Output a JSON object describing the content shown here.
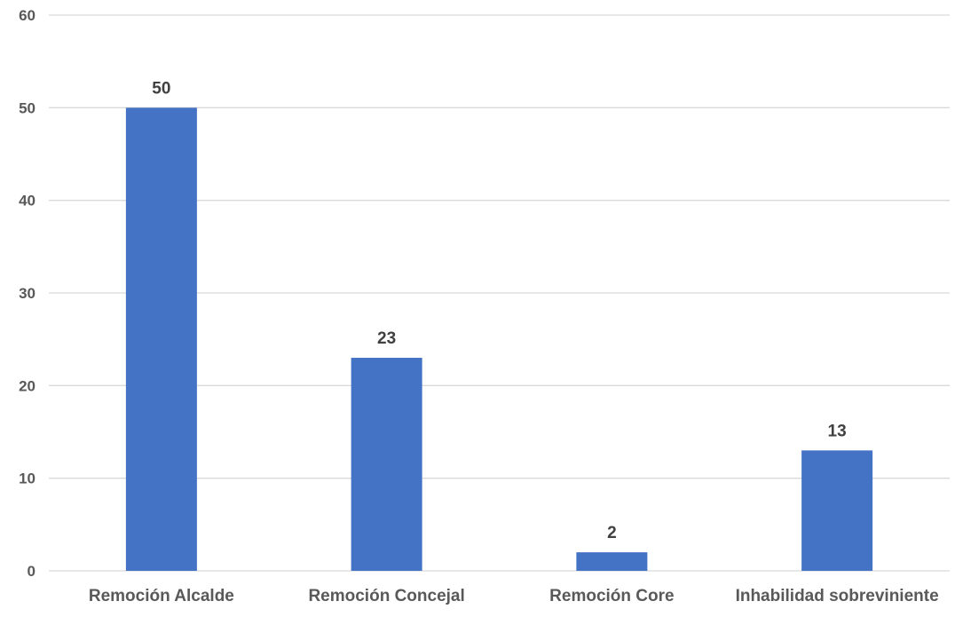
{
  "chart_data": {
    "type": "bar",
    "categories": [
      "Remoción Alcalde",
      "Remoción Concejal",
      "Remoción Core",
      "Inhabilidad sobreviniente"
    ],
    "values": [
      50,
      23,
      2,
      13
    ],
    "data_labels": [
      "50",
      "23",
      "2",
      "13"
    ],
    "y_ticks": [
      "0",
      "10",
      "20",
      "30",
      "40",
      "50",
      "60"
    ],
    "ylim": [
      0,
      60
    ],
    "grid": true,
    "legend": "none",
    "bar_color": "#4472C4"
  }
}
